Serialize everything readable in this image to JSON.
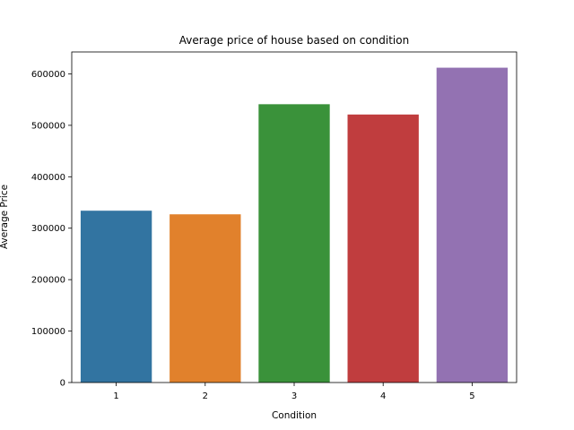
{
  "chart_data": {
    "type": "bar",
    "title": "Average price of house based on condition",
    "xlabel": "Condition",
    "ylabel": "Average Price",
    "categories": [
      "1",
      "2",
      "3",
      "4",
      "5"
    ],
    "values": [
      334000,
      327000,
      541000,
      521000,
      612000
    ],
    "colors": [
      "#3274a1",
      "#e1812c",
      "#3a923a",
      "#c03d3e",
      "#9372b2"
    ],
    "ylim": [
      0,
      642600
    ],
    "yticks": [
      0,
      100000,
      200000,
      300000,
      400000,
      500000,
      600000
    ],
    "ytick_labels": [
      "0",
      "100000",
      "200000",
      "300000",
      "400000",
      "500000",
      "600000"
    ],
    "grid": false,
    "legend": "none"
  }
}
